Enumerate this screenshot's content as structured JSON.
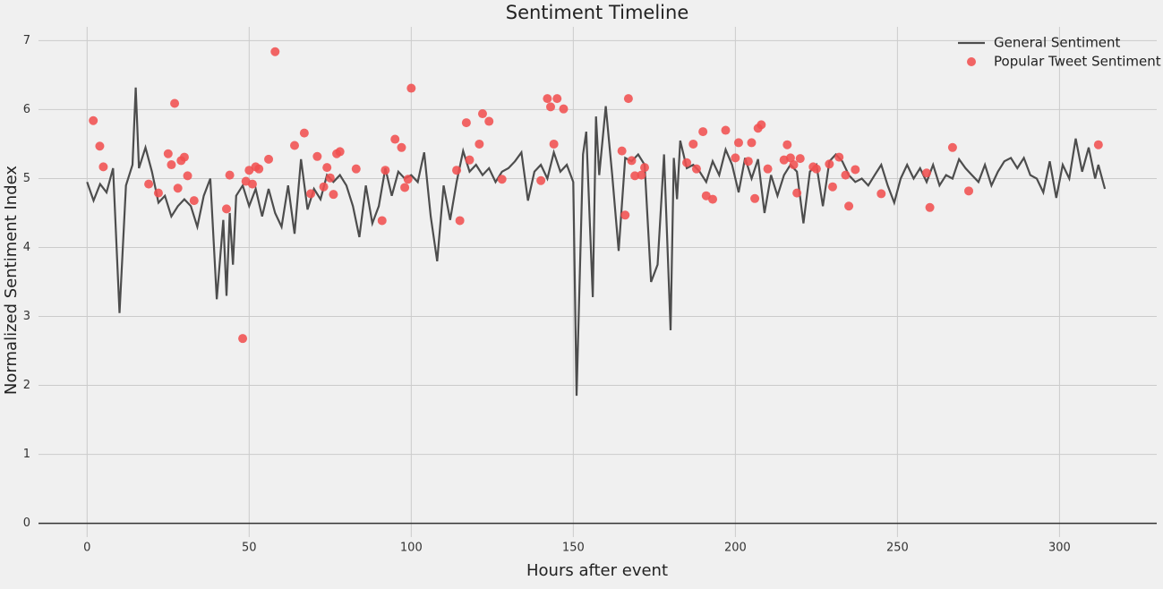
{
  "chart_data": {
    "type": "line_scatter",
    "title": "Sentiment Timeline",
    "xlabel": "Hours after event",
    "ylabel": "Normalized Sentiment Index",
    "xlim": [
      -15,
      330
    ],
    "ylim": [
      -0.2,
      7.2
    ],
    "xticks": [
      0,
      50,
      100,
      150,
      200,
      250,
      300
    ],
    "yticks": [
      0,
      1,
      2,
      3,
      4,
      5,
      6,
      7
    ],
    "grid": true,
    "hline": 0,
    "legend": "upper right",
    "series": [
      {
        "name": "General Sentiment",
        "kind": "line",
        "color": "#4d4d4d",
        "x": [
          0,
          2,
          4,
          6,
          8,
          10,
          12,
          14,
          15,
          16,
          18,
          20,
          22,
          24,
          26,
          28,
          30,
          32,
          34,
          36,
          38,
          40,
          42,
          43,
          44,
          45,
          46,
          48,
          50,
          52,
          54,
          56,
          58,
          60,
          62,
          64,
          66,
          68,
          70,
          72,
          74,
          76,
          78,
          80,
          82,
          84,
          86,
          88,
          90,
          92,
          94,
          96,
          98,
          100,
          102,
          104,
          106,
          108,
          110,
          112,
          114,
          116,
          118,
          120,
          122,
          124,
          126,
          128,
          130,
          132,
          134,
          136,
          138,
          140,
          142,
          144,
          146,
          148,
          150,
          151,
          153,
          154,
          156,
          157,
          158,
          160,
          162,
          164,
          166,
          168,
          170,
          172,
          174,
          176,
          178,
          180,
          181,
          182,
          183,
          185,
          187,
          189,
          191,
          193,
          195,
          197,
          199,
          201,
          203,
          205,
          207,
          209,
          211,
          213,
          215,
          217,
          219,
          221,
          223,
          225,
          227,
          229,
          231,
          233,
          235,
          237,
          239,
          241,
          243,
          245,
          247,
          249,
          251,
          253,
          255,
          257,
          259,
          261,
          263,
          265,
          267,
          269,
          271,
          273,
          275,
          277,
          279,
          281,
          283,
          285,
          287,
          289,
          291,
          293,
          295,
          297,
          299,
          301,
          303,
          305,
          307,
          309,
          311,
          312,
          314
        ],
        "values": [
          4.95,
          4.68,
          4.92,
          4.8,
          5.15,
          3.05,
          4.9,
          5.2,
          6.32,
          5.15,
          5.45,
          5.1,
          4.65,
          4.75,
          4.45,
          4.6,
          4.7,
          4.6,
          4.3,
          4.75,
          5.0,
          3.25,
          4.4,
          3.3,
          4.5,
          3.75,
          4.75,
          4.9,
          4.6,
          4.85,
          4.45,
          4.85,
          4.5,
          4.3,
          4.9,
          4.2,
          5.28,
          4.55,
          4.85,
          4.7,
          5.05,
          4.95,
          5.05,
          4.9,
          4.6,
          4.15,
          4.9,
          4.35,
          4.6,
          5.15,
          4.75,
          5.1,
          5.0,
          5.05,
          4.95,
          5.38,
          4.45,
          3.8,
          4.9,
          4.4,
          4.95,
          5.4,
          5.1,
          5.2,
          5.05,
          5.15,
          4.95,
          5.1,
          5.15,
          5.25,
          5.38,
          4.68,
          5.1,
          5.2,
          5.0,
          5.38,
          5.1,
          5.2,
          4.95,
          1.85,
          5.35,
          5.68,
          3.28,
          5.9,
          5.05,
          6.05,
          5.05,
          3.95,
          5.3,
          5.25,
          5.35,
          5.2,
          3.5,
          3.75,
          5.35,
          2.8,
          5.3,
          4.7,
          5.55,
          5.15,
          5.2,
          5.1,
          4.95,
          5.25,
          5.05,
          5.42,
          5.2,
          4.8,
          5.3,
          5.0,
          5.28,
          4.5,
          5.05,
          4.75,
          5.05,
          5.2,
          5.1,
          4.35,
          5.1,
          5.2,
          4.6,
          5.25,
          5.35,
          5.25,
          5.05,
          4.95,
          5.0,
          4.9,
          5.05,
          5.2,
          4.9,
          4.65,
          5.0,
          5.2,
          5.0,
          5.15,
          4.95,
          5.2,
          4.9,
          5.05,
          5.0,
          5.28,
          5.15,
          5.05,
          4.95,
          5.2,
          4.9,
          5.1,
          5.25,
          5.3,
          5.15,
          5.3,
          5.05,
          5.0,
          4.8,
          5.25,
          4.72,
          5.2,
          5.0,
          5.58,
          5.1,
          5.45,
          5.0,
          5.2,
          4.85
        ]
      },
      {
        "name": "Popular Tweet Sentiment",
        "kind": "scatter",
        "color": "#f05050",
        "x": [
          1.9,
          3.9,
          5,
          19,
          22,
          25,
          26,
          27,
          28,
          29,
          30,
          31,
          33,
          43,
          44,
          48,
          49,
          50,
          51,
          52,
          53,
          56,
          58,
          64,
          67,
          69,
          71,
          73,
          74,
          75,
          76,
          77,
          78,
          83,
          91,
          92,
          95,
          97,
          98,
          99,
          100,
          114,
          115,
          117,
          118,
          121,
          122,
          124,
          128,
          140,
          142,
          143,
          144,
          145,
          147,
          165,
          166,
          167,
          168,
          169,
          171,
          172,
          185,
          187,
          188,
          190,
          191,
          193,
          197,
          200,
          201,
          204,
          205,
          206,
          207,
          208,
          210,
          215,
          216,
          217,
          218,
          219,
          220,
          224,
          225,
          229,
          230,
          232,
          234,
          235,
          237,
          245,
          259,
          260,
          267,
          272,
          312
        ],
        "values": [
          5.84,
          5.47,
          5.17,
          4.92,
          4.79,
          5.36,
          5.2,
          6.09,
          4.86,
          5.26,
          5.31,
          5.04,
          4.68,
          4.56,
          5.05,
          2.68,
          4.96,
          5.12,
          4.92,
          5.17,
          5.14,
          5.28,
          6.84,
          5.48,
          5.66,
          4.78,
          5.32,
          4.88,
          5.16,
          5.01,
          4.77,
          5.36,
          5.39,
          5.14,
          4.39,
          5.12,
          5.57,
          5.45,
          4.87,
          4.99,
          6.31,
          5.12,
          4.39,
          5.81,
          5.27,
          5.5,
          5.94,
          5.83,
          4.99,
          4.97,
          6.16,
          6.04,
          5.5,
          6.16,
          6.01,
          5.4,
          4.47,
          6.16,
          5.26,
          5.04,
          5.05,
          5.16,
          5.23,
          5.5,
          5.14,
          5.68,
          4.75,
          4.7,
          5.7,
          5.3,
          5.52,
          5.25,
          5.52,
          4.71,
          5.73,
          5.78,
          5.14,
          5.27,
          5.49,
          5.3,
          5.2,
          4.79,
          5.29,
          5.17,
          5.14,
          5.21,
          4.88,
          5.31,
          5.05,
          4.6,
          5.13,
          4.78,
          5.08,
          4.58,
          5.45,
          4.82,
          5.49
        ]
      }
    ]
  }
}
